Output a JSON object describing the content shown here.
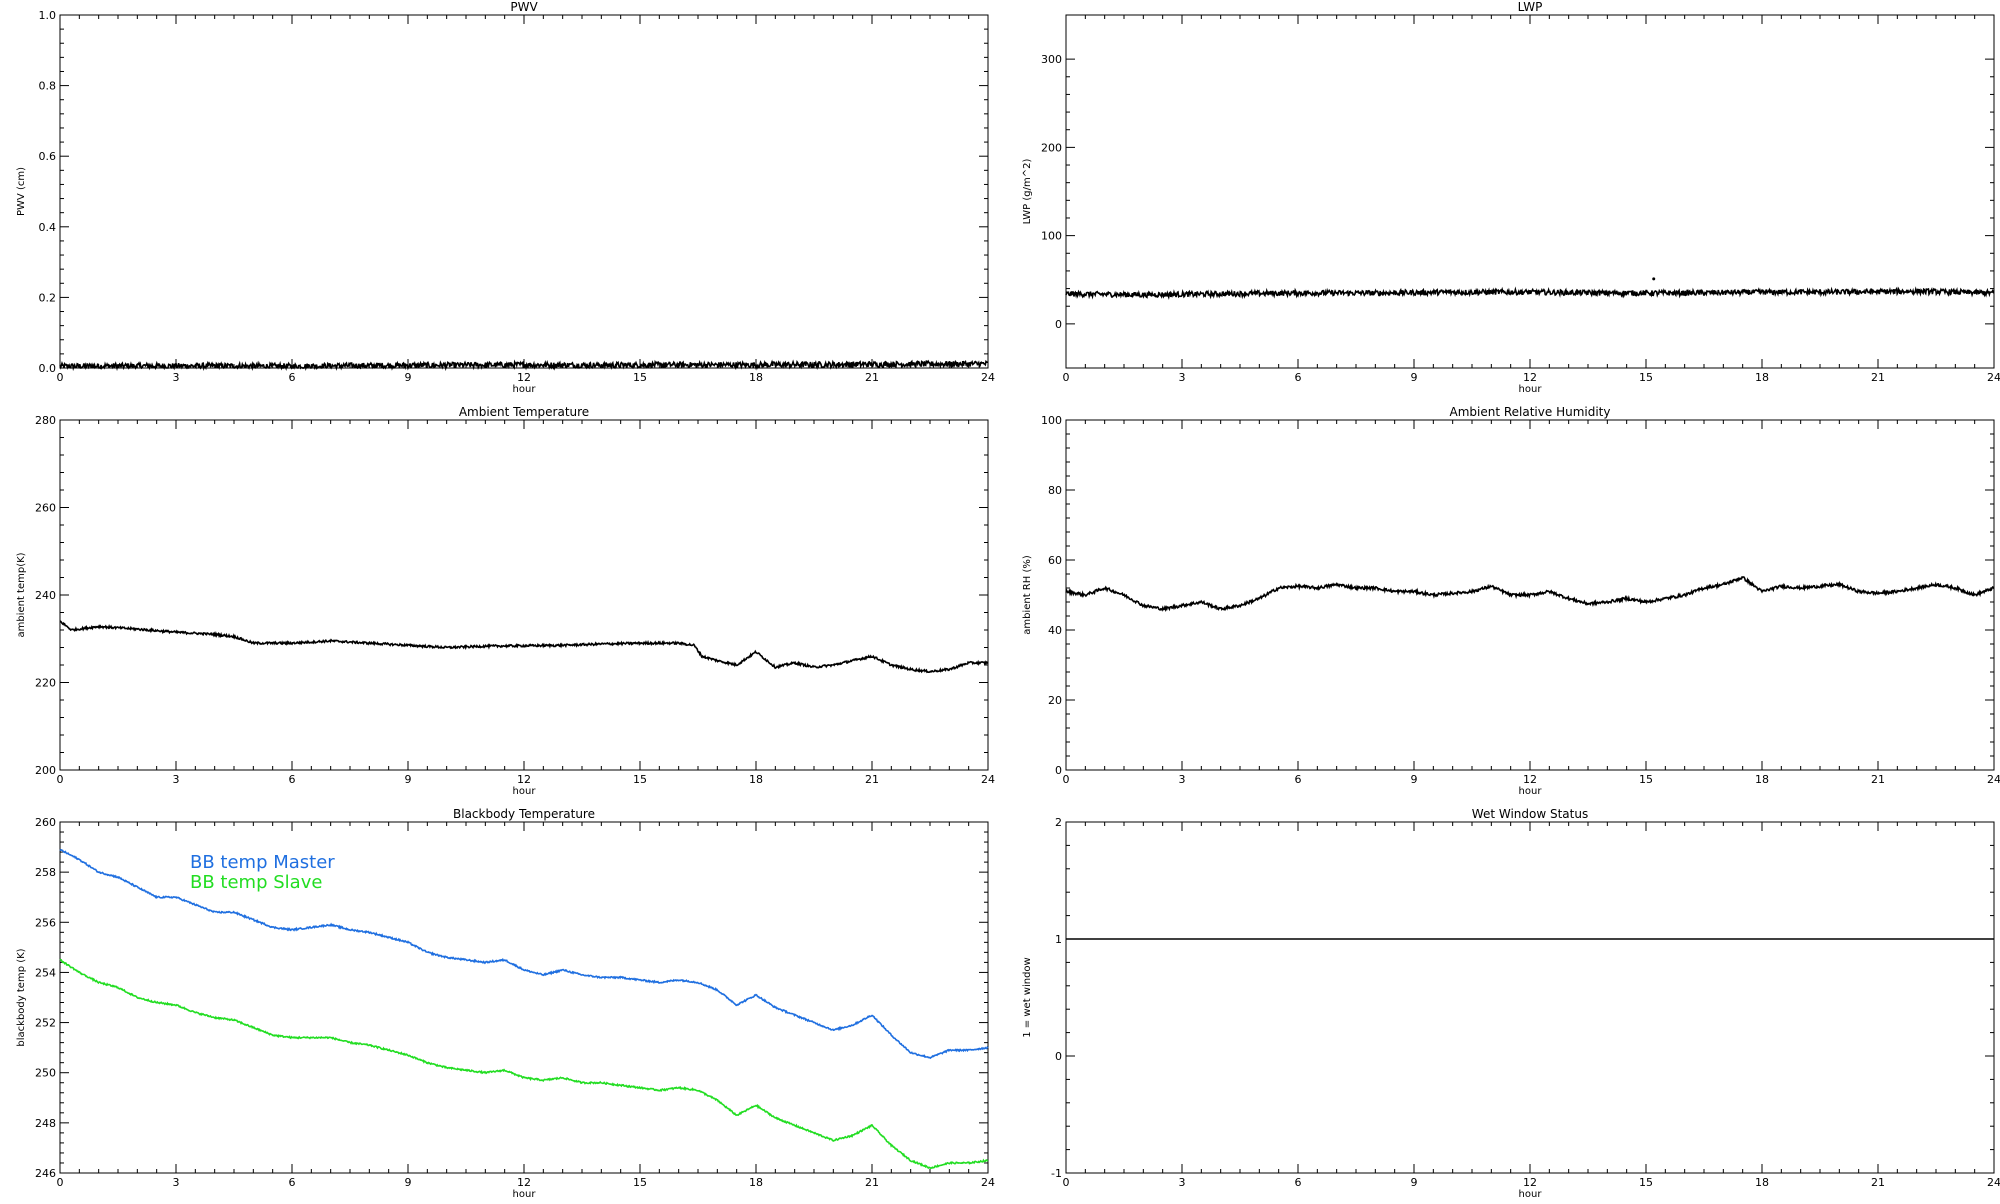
{
  "chart_data": [
    {
      "type": "line",
      "title": "PWV",
      "xlabel": "hour",
      "ylabel": "PWV (cm)",
      "xlim": [
        0,
        24
      ],
      "ylim": [
        0.0,
        1.0
      ],
      "xticks": [
        0,
        3,
        6,
        9,
        12,
        15,
        18,
        21,
        24
      ],
      "yticks": [
        "0.0",
        "0.2",
        "0.4",
        "0.6",
        "0.8",
        "1.0"
      ],
      "yticks_values": [
        0.0,
        0.2,
        0.4,
        0.6,
        0.8,
        1.0
      ],
      "series": [
        {
          "color": "#000000",
          "noise": 0.008,
          "x": [
            0,
            2,
            4,
            6,
            8,
            10,
            12,
            14,
            16,
            18,
            20,
            22,
            24
          ],
          "y": [
            0.005,
            0.006,
            0.006,
            0.005,
            0.007,
            0.008,
            0.009,
            0.008,
            0.009,
            0.009,
            0.01,
            0.011,
            0.012
          ]
        }
      ]
    },
    {
      "type": "line",
      "title": "LWP",
      "xlabel": "hour",
      "ylabel": "LWP (g/m^2)",
      "xlim": [
        0,
        24
      ],
      "ylim": [
        -50,
        350
      ],
      "xticks": [
        0,
        3,
        6,
        9,
        12,
        15,
        18,
        21,
        24
      ],
      "yticks": [
        "0",
        "100",
        "200",
        "300"
      ],
      "yticks_values": [
        0,
        100,
        200,
        300
      ],
      "series": [
        {
          "color": "#000000",
          "noise": 3,
          "x": [
            0,
            2,
            4,
            6,
            8,
            10,
            12,
            14,
            16,
            18,
            20,
            22,
            24
          ],
          "y": [
            34,
            33,
            34,
            35,
            35,
            36,
            36,
            35,
            35,
            36,
            36,
            37,
            35
          ]
        }
      ],
      "outliers": [
        {
          "x": 15.2,
          "y": 51
        }
      ]
    },
    {
      "type": "line",
      "title": "Ambient Temperature",
      "xlabel": "hour",
      "ylabel": "ambient temp(K)",
      "xlim": [
        0,
        24
      ],
      "ylim": [
        200,
        280
      ],
      "xticks": [
        0,
        3,
        6,
        9,
        12,
        15,
        18,
        21,
        24
      ],
      "yticks": [
        "200",
        "220",
        "240",
        "260",
        "280"
      ],
      "yticks_values": [
        200,
        220,
        240,
        260,
        280
      ],
      "series": [
        {
          "color": "#000000",
          "noise": 0.25,
          "x": [
            0,
            0.3,
            1,
            2,
            3,
            4,
            4.5,
            5,
            6,
            7,
            8,
            9,
            10,
            11,
            12,
            13,
            14,
            15,
            16,
            16.4,
            16.6,
            17,
            17.5,
            18,
            18.5,
            19,
            19.5,
            20,
            20.5,
            21,
            21.5,
            22,
            22.5,
            23,
            23.5,
            24
          ],
          "y": [
            234,
            232,
            232.8,
            232.2,
            231.5,
            231,
            230.5,
            229,
            229,
            229.5,
            229,
            228.5,
            228,
            228.3,
            228.4,
            228.5,
            228.8,
            229,
            229,
            228.5,
            226,
            225,
            224,
            227,
            223.5,
            224.5,
            223.5,
            224,
            225,
            226,
            224,
            223,
            222.5,
            223,
            224.5,
            224.5
          ]
        }
      ]
    },
    {
      "type": "line",
      "title": "Ambient Relative Humidity",
      "xlabel": "hour",
      "ylabel": "ambient RH (%)",
      "xlim": [
        0,
        24
      ],
      "ylim": [
        0,
        100
      ],
      "xticks": [
        0,
        3,
        6,
        9,
        12,
        15,
        18,
        21,
        24
      ],
      "yticks": [
        "0",
        "20",
        "40",
        "60",
        "80",
        "100"
      ],
      "yticks_values": [
        0,
        20,
        40,
        60,
        80,
        100
      ],
      "series": [
        {
          "color": "#000000",
          "noise": 0.4,
          "x": [
            0,
            0.5,
            1,
            1.5,
            2,
            2.5,
            3,
            3.5,
            4,
            4.5,
            5,
            5.5,
            6,
            6.5,
            7,
            7.5,
            8,
            8.5,
            9,
            9.5,
            10,
            10.5,
            11,
            11.5,
            12,
            12.5,
            13,
            13.5,
            14,
            14.5,
            15,
            15.5,
            16,
            16.5,
            17,
            17.5,
            18,
            18.5,
            19,
            19.5,
            20,
            20.5,
            21,
            21.5,
            22,
            22.5,
            23,
            23.5,
            24
          ],
          "y": [
            51,
            50,
            52,
            50,
            47,
            46,
            47,
            48,
            46,
            47,
            49,
            52,
            52.5,
            52,
            53,
            52,
            52,
            51,
            51,
            50,
            50.5,
            51,
            52.5,
            50,
            50,
            51,
            49,
            47.5,
            48,
            49,
            48,
            49,
            50,
            52,
            53,
            55,
            51,
            52.5,
            52,
            52.5,
            53,
            51,
            50.5,
            51,
            52,
            53,
            52,
            50,
            52
          ]
        }
      ]
    },
    {
      "type": "line",
      "title": "Blackbody Temperature",
      "xlabel": "hour",
      "ylabel": "blackbody temp (K)",
      "xlim": [
        0,
        24
      ],
      "ylim": [
        246,
        260
      ],
      "xticks": [
        0,
        3,
        6,
        9,
        12,
        15,
        18,
        21,
        24
      ],
      "yticks": [
        "246",
        "248",
        "250",
        "252",
        "254",
        "256",
        "258",
        "260"
      ],
      "yticks_values": [
        246,
        248,
        250,
        252,
        254,
        256,
        258,
        260
      ],
      "series": [
        {
          "name": "BB temp Master",
          "color": "#1f6fe0",
          "noise": 0.03,
          "x": [
            0,
            0.5,
            1,
            1.5,
            2,
            2.5,
            3,
            3.5,
            4,
            4.5,
            5,
            5.5,
            6,
            6.5,
            7,
            7.5,
            8,
            8.5,
            9,
            9.5,
            10,
            10.5,
            11,
            11.5,
            12,
            12.5,
            13,
            13.5,
            14,
            14.5,
            15,
            15.5,
            16,
            16.5,
            17,
            17.5,
            18,
            18.5,
            19,
            19.5,
            20,
            20.5,
            21,
            21.5,
            22,
            22.5,
            23,
            23.5,
            24
          ],
          "y": [
            258.9,
            258.5,
            258.0,
            257.8,
            257.4,
            257.0,
            257.0,
            256.7,
            256.4,
            256.4,
            256.1,
            255.8,
            255.7,
            255.8,
            255.9,
            255.7,
            255.6,
            255.4,
            255.2,
            254.8,
            254.6,
            254.5,
            254.4,
            254.5,
            254.1,
            253.9,
            254.1,
            253.9,
            253.8,
            253.8,
            253.7,
            253.6,
            253.7,
            253.6,
            253.3,
            252.7,
            253.1,
            252.6,
            252.3,
            252.0,
            251.7,
            251.9,
            252.3,
            251.5,
            250.8,
            250.6,
            250.9,
            250.9,
            251.0
          ]
        },
        {
          "name": "BB temp Slave",
          "color": "#22dd22",
          "noise": 0.03,
          "x": [
            0,
            0.5,
            1,
            1.5,
            2,
            2.5,
            3,
            3.5,
            4,
            4.5,
            5,
            5.5,
            6,
            6.5,
            7,
            7.5,
            8,
            8.5,
            9,
            9.5,
            10,
            10.5,
            11,
            11.5,
            12,
            12.5,
            13,
            13.5,
            14,
            14.5,
            15,
            15.5,
            16,
            16.5,
            17,
            17.5,
            18,
            18.5,
            19,
            19.5,
            20,
            20.5,
            21,
            21.5,
            22,
            22.5,
            23,
            23.5,
            24
          ],
          "y": [
            254.5,
            254.0,
            253.6,
            253.4,
            253.0,
            252.8,
            252.7,
            252.4,
            252.2,
            252.1,
            251.8,
            251.5,
            251.4,
            251.4,
            251.4,
            251.2,
            251.1,
            250.9,
            250.7,
            250.4,
            250.2,
            250.1,
            250.0,
            250.1,
            249.8,
            249.7,
            249.8,
            249.6,
            249.6,
            249.5,
            249.4,
            249.3,
            249.4,
            249.3,
            248.9,
            248.3,
            248.7,
            248.2,
            247.9,
            247.6,
            247.3,
            247.5,
            247.9,
            247.1,
            246.5,
            246.2,
            246.4,
            246.4,
            246.5
          ]
        }
      ]
    },
    {
      "type": "line",
      "title": "Wet Window Status",
      "xlabel": "hour",
      "ylabel": "1 = wet window",
      "xlim": [
        0,
        24
      ],
      "ylim": [
        -1,
        2
      ],
      "xticks": [
        0,
        3,
        6,
        9,
        12,
        15,
        18,
        21,
        24
      ],
      "yticks": [
        "-1",
        "0",
        "1",
        "2"
      ],
      "yticks_values": [
        -1,
        0,
        1,
        2
      ],
      "series": [
        {
          "color": "#000000",
          "noise": 0,
          "x": [
            0,
            24
          ],
          "y": [
            1,
            1
          ]
        }
      ]
    }
  ]
}
